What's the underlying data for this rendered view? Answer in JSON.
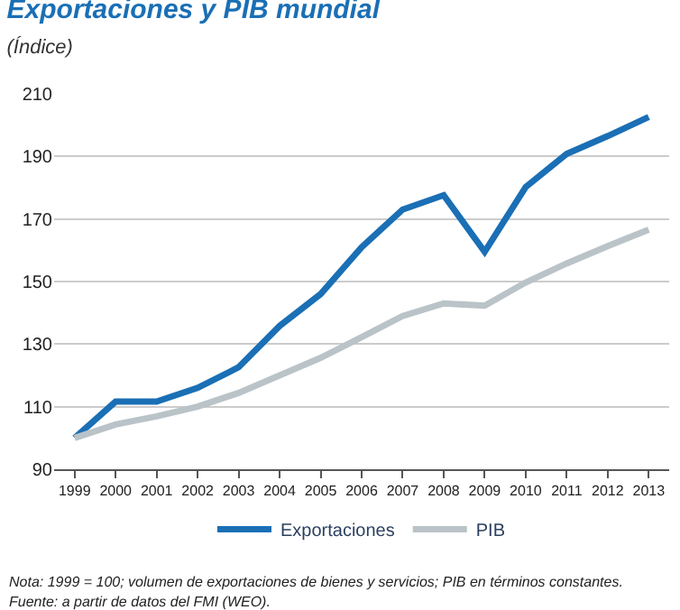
{
  "chart_data": {
    "type": "line",
    "title": "Exportaciones y PIB mundial",
    "subtitle": "(Índice)",
    "categories": [
      "1999",
      "2000",
      "2001",
      "2002",
      "2003",
      "2004",
      "2005",
      "2006",
      "2007",
      "2008",
      "2009",
      "2010",
      "2011",
      "2012",
      "2013"
    ],
    "series": [
      {
        "name": "Exportaciones",
        "color": "#1a6fb5",
        "values": [
          100,
          111.6,
          111.6,
          116,
          122.6,
          135.8,
          146,
          161,
          173,
          177.6,
          159.5,
          180.2,
          190.8,
          196.5,
          202.6
        ]
      },
      {
        "name": "PIB",
        "color": "#b9c3c8",
        "values": [
          100,
          104.3,
          106.9,
          110,
          114.4,
          120,
          125.6,
          132.2,
          139,
          143,
          142.3,
          149.7,
          155.8,
          161.3,
          166.6
        ]
      }
    ],
    "ylim": [
      90,
      210
    ],
    "yticks": [
      90,
      110,
      130,
      150,
      170,
      190,
      210
    ],
    "grid": "y",
    "legend": "bottom",
    "marker": "none",
    "line_style": "solid",
    "annotations": [
      "Nota: 1999 = 100; volumen de exportaciones de bienes y servicios; PIB en términos constantes.",
      "Fuente: a partir de datos del FMI (WEO)."
    ]
  }
}
